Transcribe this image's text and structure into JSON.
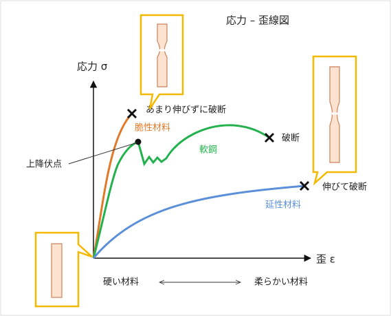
{
  "title": "応力 – 歪線図",
  "y_axis_label": "応力 σ",
  "x_axis_label": "歪 ε",
  "labels": {
    "brittle_break": "あまり伸びずに破断",
    "brittle": "脆性材料",
    "yield_point": "上降伏点",
    "mild_steel": "軟鋼",
    "steel_break": "破断",
    "ductile_break": "伸びて破断",
    "ductile": "延性材料",
    "hard": "硬い材料",
    "soft": "柔らかい材料"
  }
}
